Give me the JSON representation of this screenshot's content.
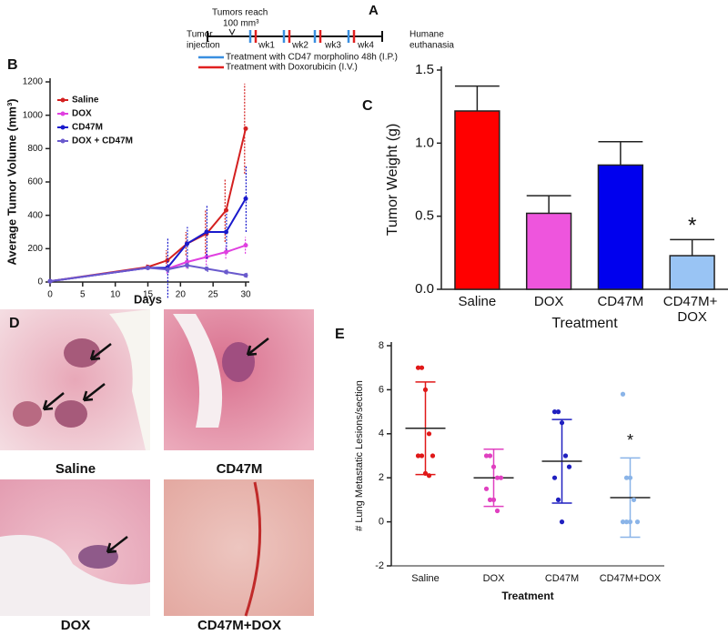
{
  "schematic": {
    "panel": "A",
    "tumors_reach": [
      "Tumors reach",
      "100 mm³"
    ],
    "start": [
      "Tumor",
      "injection"
    ],
    "end": [
      "Humane",
      "euthanasia"
    ],
    "weeks": [
      "wk1",
      "wk2",
      "wk3",
      "wk4"
    ],
    "legend": [
      {
        "text": "Treatment with CD47 morpholino 48h (I.P.)",
        "color": "#3a8fe0"
      },
      {
        "text": "Treatment with Doxorubicin (I.V.)",
        "color": "#e02020"
      }
    ]
  },
  "micrographs": {
    "panel": "D",
    "labels": [
      "Saline",
      "CD47M",
      "DOX",
      "CD47M+DOX"
    ]
  },
  "chart_data": [
    {
      "type": "line",
      "panel": "B",
      "x_label": "Days",
      "y_label": "Average Tumor Volume (mm³)",
      "x": [
        0,
        15,
        18,
        21,
        24,
        27,
        30
      ],
      "xlim": [
        0,
        30
      ],
      "xticks": [
        0,
        5,
        10,
        15,
        20,
        25,
        30
      ],
      "ylim": [
        0,
        1200
      ],
      "yticks": [
        0,
        200,
        400,
        600,
        800,
        1000,
        1200
      ],
      "legend": "upper left",
      "series": [
        {
          "name": "Saline",
          "color": "#d42020",
          "values": [
            5,
            90,
            130,
            230,
            290,
            430,
            920
          ],
          "errors": [
            3,
            15,
            60,
            70,
            140,
            190,
            270
          ]
        },
        {
          "name": "DOX",
          "color": "#e040e0",
          "values": [
            5,
            85,
            80,
            120,
            150,
            180,
            220
          ],
          "errors": [
            3,
            10,
            30,
            40,
            50,
            40,
            50
          ]
        },
        {
          "name": "CD47M",
          "color": "#1a1acc",
          "values": [
            5,
            85,
            85,
            230,
            300,
            300,
            500
          ],
          "errors": [
            3,
            10,
            180,
            100,
            160,
            110,
            200
          ]
        },
        {
          "name": "DOX + CD47M",
          "color": "#6a5acd",
          "values": [
            5,
            85,
            75,
            100,
            80,
            60,
            40
          ],
          "errors": [
            3,
            10,
            20,
            20,
            20,
            15,
            15
          ]
        }
      ]
    },
    {
      "type": "bar",
      "panel": "C",
      "x_label": "Treatment",
      "y_label": "Tumor Weight (g)",
      "categories": [
        "Saline",
        "DOX",
        "CD47M",
        "CD47M+ DOX"
      ],
      "values": [
        1.22,
        0.52,
        0.85,
        0.23
      ],
      "errors": [
        0.17,
        0.12,
        0.16,
        0.11
      ],
      "colors": [
        "#ff0000",
        "#ee55dd",
        "#0000ee",
        "#99c4f4"
      ],
      "ylim": [
        0,
        1.5
      ],
      "yticks": [
        {
          "value": 0,
          "label": "0.0"
        },
        {
          "value": 0.5,
          "label": "0.5"
        },
        {
          "value": 1,
          "label": "1.0"
        },
        {
          "value": 1.5,
          "label": "1.5"
        }
      ],
      "annotations": [
        {
          "text": "*",
          "x": "CD47M+ DOX"
        }
      ]
    },
    {
      "type": "strip",
      "panel": "E",
      "x_label": "Treatment",
      "y_label": "# Lung Metastatic Lesions/section",
      "categories": [
        "Saline",
        "DOX",
        "CD47M",
        "CD47M+DOX"
      ],
      "colors": [
        "#e01818",
        "#e040c0",
        "#2020c0",
        "#8ab4e8"
      ],
      "points": [
        [
          7,
          7,
          6,
          4,
          3,
          3,
          3,
          2.2,
          2.1
        ],
        [
          3,
          3,
          2.5,
          2,
          2,
          1.5,
          1,
          1,
          0.5
        ],
        [
          5,
          5,
          4.5,
          3,
          2.5,
          2,
          1,
          0
        ],
        [
          5.8,
          2,
          2,
          1,
          0,
          0,
          0,
          0
        ]
      ],
      "means": [
        4.25,
        2.0,
        2.75,
        1.1
      ],
      "sds": [
        2.1,
        1.3,
        1.9,
        1.8
      ],
      "ylim": [
        -2,
        8
      ],
      "yticks": [
        -2,
        0,
        2,
        4,
        6,
        8
      ],
      "annotations": [
        {
          "text": "*",
          "x": "CD47M+DOX"
        }
      ]
    }
  ]
}
